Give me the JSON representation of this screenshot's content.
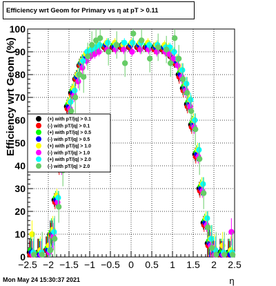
{
  "chart_data": {
    "type": "scatter",
    "title": "Efficiency wrt Geom for Primary vs   η at pT > 0.11",
    "xlabel": "η",
    "ylabel": "Efficiency wrt Geom (%)",
    "xlim": [
      -2.5,
      2.5
    ],
    "ylim": [
      0,
      100
    ],
    "xticks": [
      "−2.5",
      "−2",
      "−1.5",
      "−1",
      "−0.5",
      "0",
      "0.5",
      "1",
      "1.5",
      "2",
      "2.5"
    ],
    "yticks": [
      "0",
      "10",
      "20",
      "30",
      "40",
      "50",
      "60",
      "70",
      "80",
      "90",
      "100"
    ],
    "grid": true,
    "legend_position": "left-middle",
    "x": [
      -2.4,
      -2.2,
      -2.0,
      -1.9,
      -1.8,
      -1.7,
      -1.6,
      -1.5,
      -1.4,
      -1.3,
      -1.2,
      -1.1,
      -1.0,
      -0.9,
      -0.8,
      -0.6,
      -0.4,
      -0.2,
      0.0,
      0.2,
      0.4,
      0.6,
      0.8,
      0.9,
      1.0,
      1.1,
      1.2,
      1.3,
      1.4,
      1.5,
      1.6,
      1.7,
      1.8,
      1.9,
      2.0,
      2.2,
      2.4
    ],
    "series": [
      {
        "name": "(+) with pT/|q| > 0.1",
        "color": "#000000",
        "values": [
          2,
          2,
          3,
          10,
          25,
          40,
          55,
          66,
          72,
          78,
          84,
          87,
          89,
          90,
          91,
          92,
          92,
          92,
          92,
          92,
          92,
          92,
          91,
          90,
          88,
          85,
          80,
          74,
          67,
          58,
          45,
          30,
          15,
          6,
          3,
          2,
          2
        ]
      },
      {
        "name": "(-) with pT/|q| > 0.1",
        "color": "#ff0000",
        "values": [
          1,
          2,
          3,
          9,
          24,
          39,
          54,
          65,
          71,
          78,
          84,
          87,
          89,
          90,
          91,
          92,
          92,
          92,
          92,
          92,
          92,
          91,
          91,
          90,
          88,
          85,
          79,
          73,
          66,
          57,
          44,
          29,
          14,
          5,
          2,
          1,
          1
        ]
      },
      {
        "name": "(+) with pT/|q| > 0.5",
        "color": "#00ff00",
        "values": [
          3,
          2,
          4,
          11,
          26,
          41,
          56,
          67,
          73,
          79,
          85,
          88,
          90,
          91,
          92,
          93,
          93,
          93,
          93,
          93,
          93,
          92,
          92,
          91,
          89,
          86,
          81,
          75,
          68,
          59,
          46,
          31,
          16,
          7,
          3,
          2,
          2
        ]
      },
      {
        "name": "(-) with pT/|q| > 0.5",
        "color": "#0000ff",
        "values": [
          2,
          1,
          3,
          10,
          25,
          40,
          55,
          66,
          72,
          79,
          85,
          88,
          90,
          91,
          92,
          93,
          92,
          93,
          93,
          93,
          92,
          92,
          92,
          91,
          89,
          86,
          80,
          74,
          67,
          58,
          45,
          30,
          15,
          6,
          2,
          1,
          1
        ]
      },
      {
        "name": "(+) with pT/|q| > 1.0",
        "color": "#ffff00",
        "values": [
          10,
          3,
          5,
          12,
          27,
          42,
          57,
          68,
          74,
          80,
          86,
          89,
          91,
          92,
          93,
          94,
          94,
          93,
          94,
          94,
          94,
          93,
          93,
          92,
          90,
          87,
          82,
          76,
          69,
          60,
          47,
          32,
          17,
          8,
          4,
          5,
          3
        ]
      },
      {
        "name": "(-) with pT/|q| > 1.0",
        "color": "#ff00ff",
        "values": [
          1,
          1,
          2,
          9,
          24,
          39,
          54,
          65,
          71,
          77,
          83,
          86,
          88,
          89,
          90,
          91,
          91,
          91,
          90,
          91,
          91,
          90,
          90,
          89,
          87,
          84,
          79,
          73,
          66,
          57,
          44,
          29,
          14,
          5,
          1,
          1,
          11
        ]
      },
      {
        "name": "(+) with pT/|q| > 2.0",
        "color": "#00ffff",
        "values": [
          2,
          2,
          3,
          11,
          26,
          41,
          57,
          68,
          73,
          80,
          86,
          90,
          91,
          92,
          93,
          94,
          93,
          94,
          94,
          94,
          93,
          93,
          92,
          92,
          90,
          87,
          82,
          76,
          69,
          60,
          47,
          32,
          17,
          8,
          3,
          2,
          2
        ]
      },
      {
        "name": "(-) with pT/|q| > 2.0",
        "color": "#66cc66",
        "values": [
          1,
          1,
          3,
          8,
          22,
          38,
          53,
          64,
          70,
          80,
          79,
          88,
          93,
          95,
          96,
          90,
          93,
          85,
          98,
          95,
          87,
          92,
          91,
          85,
          96,
          87,
          78,
          72,
          64,
          56,
          43,
          28,
          13,
          4,
          1,
          1,
          1
        ]
      }
    ]
  },
  "footer": {
    "date": "Mon May 24 15:30:37 2021"
  }
}
